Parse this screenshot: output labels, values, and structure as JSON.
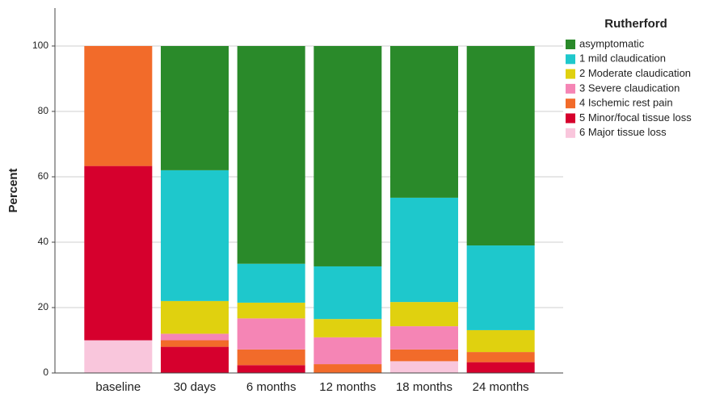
{
  "chart_data": {
    "type": "stacked_bar",
    "y_label": "Percent",
    "legend_title": "Rutherford",
    "categories": [
      "baseline",
      "30 days",
      "6 months",
      "12 months",
      "18 months",
      "24 months"
    ],
    "series": [
      {
        "name": "asymptomatic",
        "color": "#2a8a2a",
        "values": [
          0,
          38,
          66.6,
          67.4,
          46.4,
          61
        ]
      },
      {
        "name": "1 mild claudication",
        "color": "#1ec8cc",
        "values": [
          0,
          40,
          11.9,
          16.1,
          31.9,
          25.9
        ]
      },
      {
        "name": "2 Moderate claudication",
        "color": "#e0d10f",
        "values": [
          0,
          10,
          4.8,
          5.6,
          7.4,
          6.7
        ]
      },
      {
        "name": "3 Severe claudication",
        "color": "#f585b5",
        "values": [
          0,
          2,
          9.5,
          8.2,
          7.1,
          0
        ]
      },
      {
        "name": "4 Ischemic rest pain",
        "color": "#f26b2a",
        "values": [
          36.7,
          2,
          4.8,
          2.7,
          3.6,
          3.1
        ]
      },
      {
        "name": "5 Minor/focal tissue loss",
        "color": "#d6002d",
        "values": [
          53.3,
          8,
          2.4,
          0,
          0,
          3.3
        ]
      },
      {
        "name": "6 Major tissue loss",
        "color": "#f9c6dc",
        "values": [
          10,
          0,
          0,
          0,
          3.6,
          0
        ]
      }
    ],
    "ylim": [
      0,
      111.6
    ],
    "yticks": [
      0,
      20,
      40,
      60,
      80,
      100
    ],
    "grid": true,
    "legend": "right"
  }
}
